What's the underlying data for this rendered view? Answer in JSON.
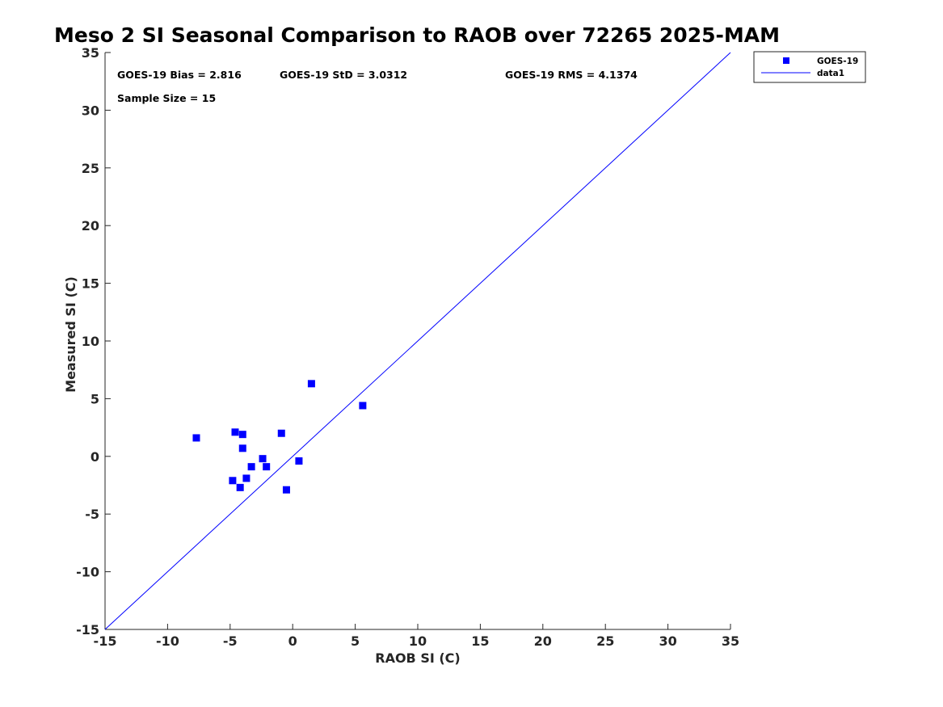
{
  "chart_data": {
    "type": "scatter",
    "title": "Meso 2 SI Seasonal Comparison to RAOB over 72265 2025-MAM",
    "xlabel": "RAOB SI (C)",
    "ylabel": "Measured SI (C)",
    "xlim": [
      -15,
      35
    ],
    "ylim": [
      -15,
      35
    ],
    "xticks": [
      -15,
      -10,
      -5,
      0,
      5,
      10,
      15,
      20,
      25,
      30,
      35
    ],
    "yticks": [
      -15,
      -10,
      -5,
      0,
      5,
      10,
      15,
      20,
      25,
      30,
      35
    ],
    "series": [
      {
        "name": "GOES-19",
        "marker": "square",
        "color": "#0000ff",
        "points": [
          {
            "x": -7.7,
            "y": 1.6
          },
          {
            "x": -4.6,
            "y": 2.1
          },
          {
            "x": -4.0,
            "y": 1.9
          },
          {
            "x": -4.0,
            "y": 0.7
          },
          {
            "x": -0.9,
            "y": 2.0
          },
          {
            "x": -2.4,
            "y": -0.2
          },
          {
            "x": -3.3,
            "y": -0.9
          },
          {
            "x": -2.1,
            "y": -0.9
          },
          {
            "x": 0.5,
            "y": -0.4
          },
          {
            "x": -4.8,
            "y": -2.1
          },
          {
            "x": -3.7,
            "y": -1.9
          },
          {
            "x": -4.2,
            "y": -2.7
          },
          {
            "x": -0.5,
            "y": -2.9
          },
          {
            "x": 1.5,
            "y": 6.3
          },
          {
            "x": 5.6,
            "y": 4.4
          }
        ]
      },
      {
        "name": "data1",
        "type": "line",
        "color": "#0000ff",
        "points": [
          {
            "x": -15,
            "y": -15
          },
          {
            "x": 35,
            "y": 35
          }
        ]
      }
    ],
    "annotations": {
      "bias": "GOES-19 Bias = 2.816",
      "std": "GOES-19 StD = 3.0312",
      "rms": "GOES-19 RMS = 4.1374",
      "sample_size": "Sample Size = 15"
    },
    "legend": {
      "position": "top-right-outside",
      "entries": [
        "GOES-19",
        "data1"
      ]
    },
    "grid": false
  }
}
